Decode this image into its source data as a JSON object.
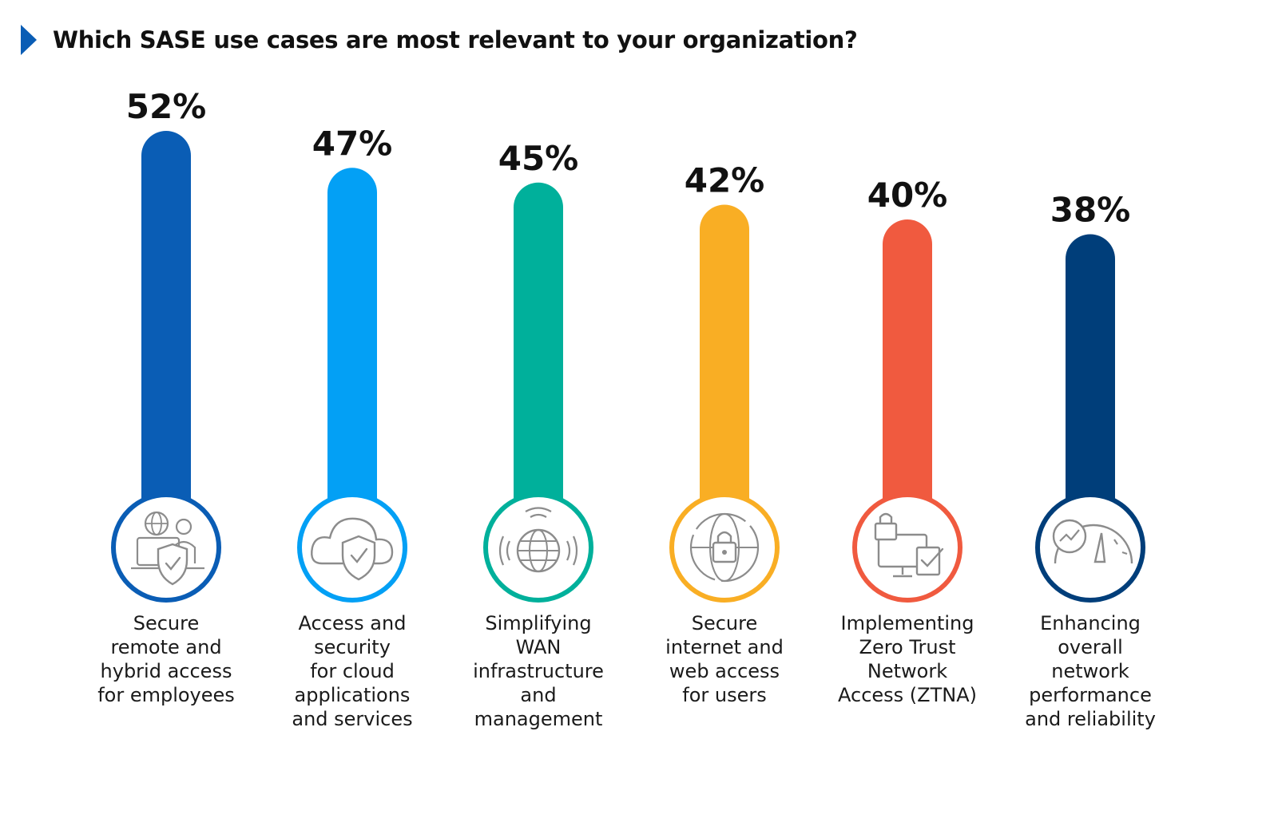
{
  "title": "Which SASE use cases are most relevant to your organization?",
  "chart_data": {
    "type": "bar",
    "categories": [
      "Secure\nremote and\nhybrid access\nfor employees",
      "Access and\nsecurity\nfor cloud\napplications\nand services",
      "Simplifying\nWAN\ninfrastructure\nand\nmanagement",
      "Secure\ninternet and\nweb access\nfor users",
      "Implementing\nZero Trust\nNetwork\nAccess (ZTNA)",
      "Enhancing\noverall\nnetwork\nperformance\nand reliability"
    ],
    "values": [
      52,
      47,
      45,
      42,
      40,
      38
    ],
    "value_labels": [
      "52%",
      "47%",
      "45%",
      "42%",
      "40%",
      "38%"
    ],
    "colors": [
      "#0a5db5",
      "#03a0f5",
      "#00b09b",
      "#f9ae24",
      "#f05a3f",
      "#003e7a"
    ],
    "icons": [
      "remote-worker-shield-icon",
      "cloud-shield-icon",
      "wireless-globe-icon",
      "globe-lock-icon",
      "monitor-lock-check-icon",
      "speedometer-chart-icon"
    ],
    "title": "Which SASE use cases are most relevant to your organization?",
    "xlabel": "",
    "ylabel": "",
    "grid": false
  }
}
